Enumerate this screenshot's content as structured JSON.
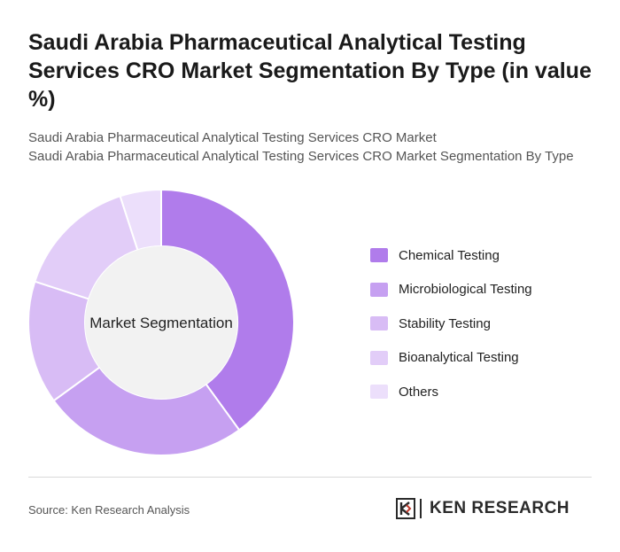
{
  "title": "Saudi Arabia Pharmaceutical Analytical Testing Services CRO Market Segmentation By Type (in value %)",
  "subtitle_line1": "Saudi Arabia Pharmaceutical Analytical Testing Services CRO Market",
  "subtitle_line2": "Saudi Arabia Pharmaceutical Analytical Testing Services CRO Market Segmentation By Type",
  "source": "Source: Ken Research Analysis",
  "logo_text": "KEN RESEARCH",
  "logo_mark": "K",
  "chart_data": {
    "type": "pie",
    "variant": "donut",
    "center_label": "Market Segmentation",
    "legend_position": "right",
    "categories": [
      "Chemical Testing",
      "Microbiological Testing",
      "Stability Testing",
      "Bioanalytical Testing",
      "Others"
    ],
    "values": [
      40,
      25,
      15,
      15,
      5
    ],
    "colors": [
      "#b07ceb",
      "#c6a0f1",
      "#d8bcf5",
      "#e2cdf8",
      "#ecdffb"
    ]
  }
}
